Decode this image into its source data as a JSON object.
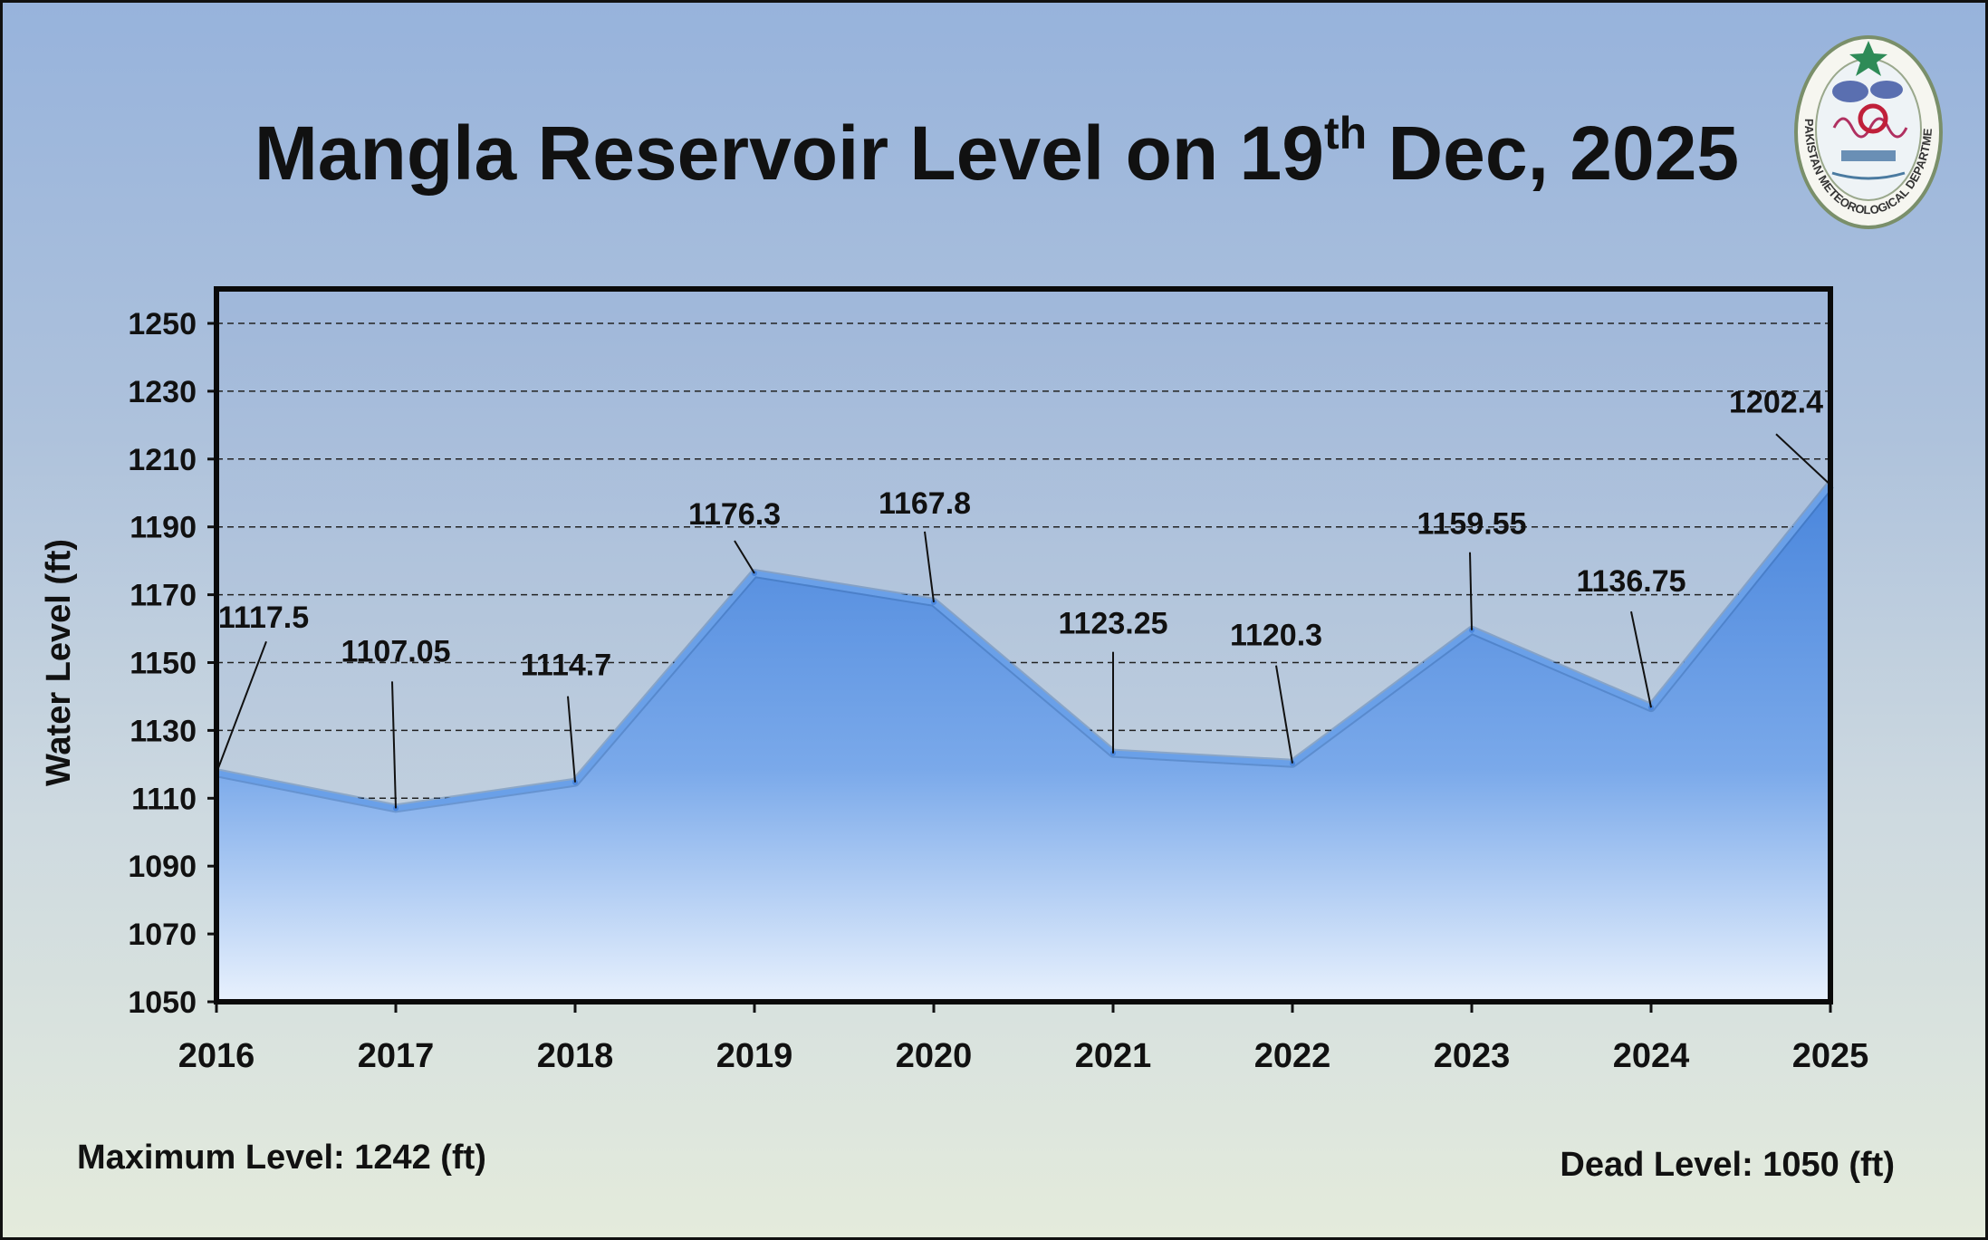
{
  "title": {
    "main": "Mangla Reservoir Level on 19",
    "superscript": "th",
    "rest": " Dec, 2025"
  },
  "logo": {
    "text": "PAKISTAN METEOROLOGICAL DEPARTMENT",
    "icon": "pmd-emblem-icon",
    "star_color": "#2e8b57"
  },
  "chart_data": {
    "type": "area",
    "title": "Mangla Reservoir Level on 19th Dec, 2025",
    "ylabel": "Water Level (ft)",
    "xlabel": "",
    "categories": [
      "2016",
      "2017",
      "2018",
      "2019",
      "2020",
      "2021",
      "2022",
      "2023",
      "2024",
      "2025"
    ],
    "values": [
      1117.5,
      1107.05,
      1114.7,
      1176.3,
      1167.8,
      1123.25,
      1120.3,
      1159.55,
      1136.75,
      1202.4
    ],
    "value_labels": [
      "1117.5",
      "1107.05",
      "1114.7",
      "1176.3",
      "1167.8",
      "1123.25",
      "1120.3",
      "1159.55",
      "1136.75",
      "1202.4"
    ],
    "ylim": [
      1050,
      1250
    ],
    "yticks": [
      1050,
      1070,
      1090,
      1110,
      1130,
      1150,
      1170,
      1190,
      1210,
      1230,
      1250
    ],
    "grid": true,
    "grid_style": "dashed",
    "fill_color": "#5b93e0",
    "line_color": "#6aa0e8"
  },
  "footer": {
    "max_level": "Maximum Level: 1242 (ft)",
    "dead_level": "Dead Level: 1050 (ft)"
  }
}
